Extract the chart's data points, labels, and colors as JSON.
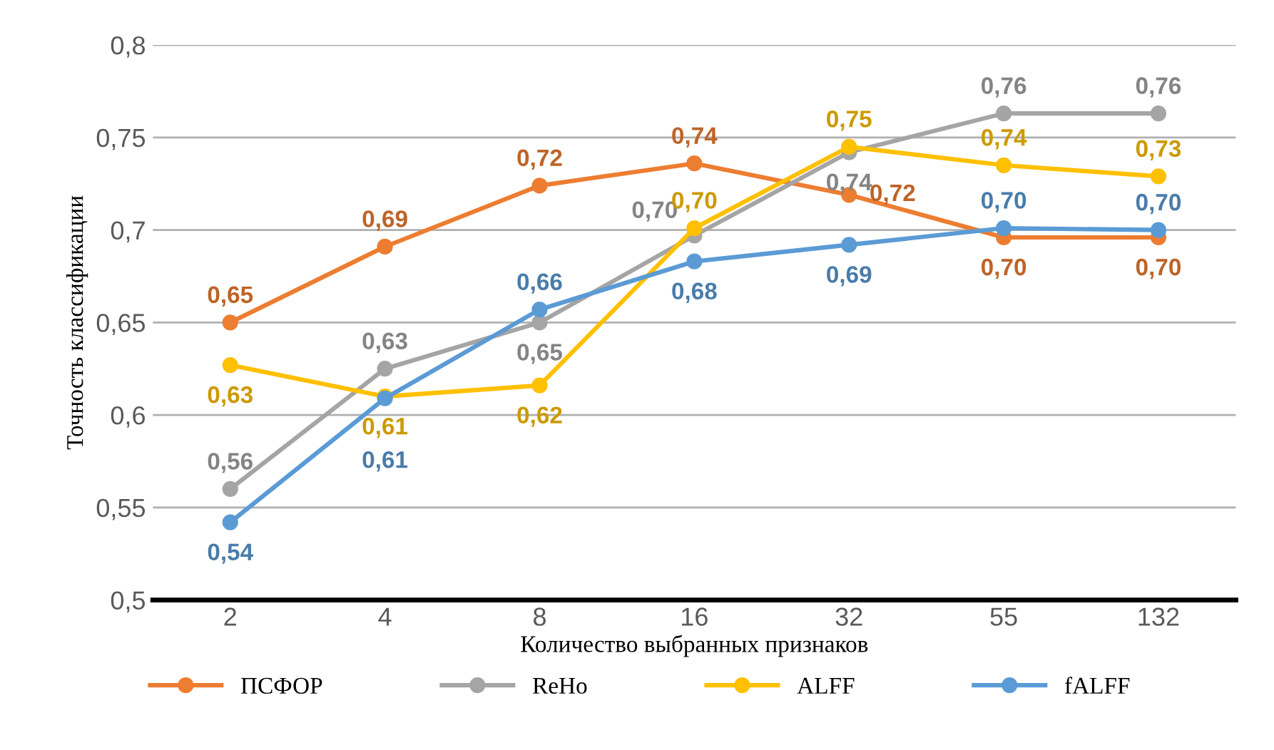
{
  "chart_data": {
    "type": "line",
    "xlabel": "Количество выбранных признаков",
    "ylabel": "Точность классификации",
    "categories": [
      "2",
      "4",
      "8",
      "16",
      "32",
      "55",
      "132"
    ],
    "series": [
      {
        "name": "ПСФОР",
        "color": "#ed7d31",
        "values": [
          0.65,
          0.691,
          0.724,
          0.736,
          0.719,
          0.696,
          0.696
        ],
        "value_labels": [
          "0,65",
          "0,69",
          "0,72",
          "0,74",
          "0,72",
          "0,70",
          "0,70"
        ]
      },
      {
        "name": "ReHo",
        "color": "#a5a5a5",
        "values": [
          0.56,
          0.625,
          0.65,
          0.697,
          0.742,
          0.763,
          0.763
        ],
        "value_labels": [
          "0,56",
          "0,63",
          "0,65",
          "0,70",
          "0,74",
          "0,76",
          "0,76"
        ]
      },
      {
        "name": "ALFF",
        "color": "#ffc000",
        "values": [
          0.627,
          0.61,
          0.616,
          0.701,
          0.745,
          0.735,
          0.729
        ],
        "value_labels": [
          "0,63",
          "0,61",
          "0,62",
          "0,70",
          "0,75",
          "0,74",
          "0,73"
        ]
      },
      {
        "name": "fALFF",
        "color": "#5b9bd5",
        "values": [
          0.542,
          0.609,
          0.657,
          0.683,
          0.692,
          0.701,
          0.7
        ],
        "value_labels": [
          "0,54",
          "0,61",
          "0,66",
          "0,68",
          "0,69",
          "0,70",
          "0,70"
        ]
      }
    ],
    "ylim": [
      0.5,
      0.8
    ],
    "yticks": [
      {
        "value": 0.5,
        "label": "0,5"
      },
      {
        "value": 0.55,
        "label": "0,55"
      },
      {
        "value": 0.6,
        "label": "0,6"
      },
      {
        "value": 0.65,
        "label": "0,65"
      },
      {
        "value": 0.7,
        "label": "0,7"
      },
      {
        "value": 0.75,
        "label": "0,75"
      },
      {
        "value": 0.8,
        "label": "0,8"
      }
    ],
    "grid": "y",
    "legend": "bottom",
    "marker": "circle",
    "line_style": "solid"
  }
}
